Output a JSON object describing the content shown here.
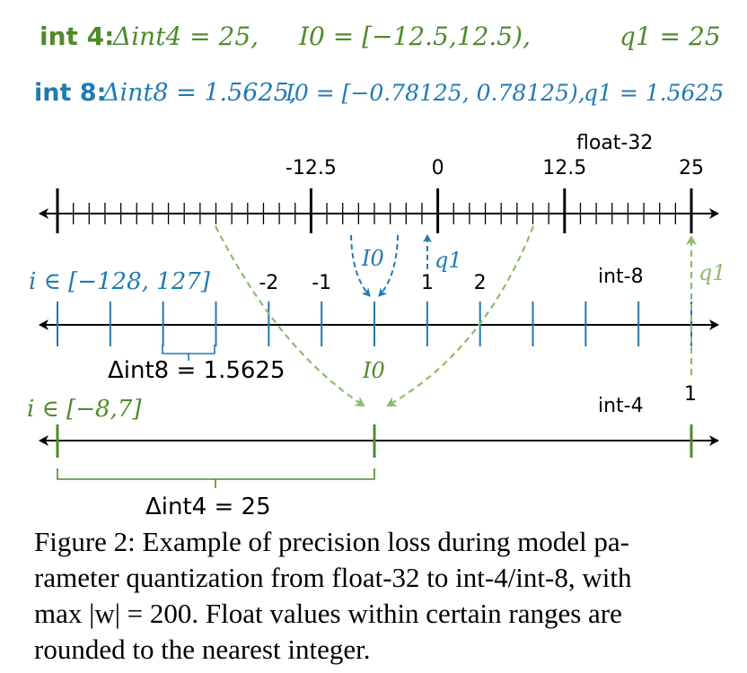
{
  "header": {
    "int4_label": "int 4:",
    "int4_delta": "Δint4 = 25,",
    "int4_interval": "I0 = [−12.5,12.5),",
    "int4_q1": "q1 = 25",
    "int8_label": "int 8:",
    "int8_delta": "Δint8 = 1.5625,",
    "int8_interval": "I0 = [−0.78125, 0.78125),",
    "int8_q1": "q1 = 1.5625"
  },
  "float32_axis": {
    "name": "float-32",
    "ticks": [
      "-12.5",
      "0",
      "12.5",
      "25"
    ],
    "tick_values": [
      -12.5,
      0,
      12.5,
      25
    ],
    "min": -37.5,
    "max": 25,
    "minor_step": 1.5625
  },
  "int8_axis": {
    "name": "int-8",
    "range_label": "i ∈ [−128, 127]",
    "ticks": [
      "-2",
      "-1",
      "1",
      "2"
    ],
    "tick_values": [
      -2,
      -1,
      1,
      2
    ],
    "delta_label": "Δint8 = 1.5625",
    "I0_label": "I0",
    "q1_label": "q1",
    "q1_right_label": "q1"
  },
  "int4_axis": {
    "name": "int-4",
    "range_label": "i ∈ [−8,7]",
    "tick_label": "1",
    "delta_label": "Δint4 = 25"
  },
  "colors": {
    "int4": "#4f8a2b",
    "int8": "#1f7ab3",
    "arrow_green": "#8fba6e",
    "black": "#000000"
  },
  "caption": {
    "line1": "Figure 2: Example of precision loss during model pa-",
    "line2": "rameter quantization from float-32 to int-4/int-8, with",
    "line3": "max |w| = 200. Float values within certain ranges are",
    "line4": "rounded to the nearest integer."
  }
}
